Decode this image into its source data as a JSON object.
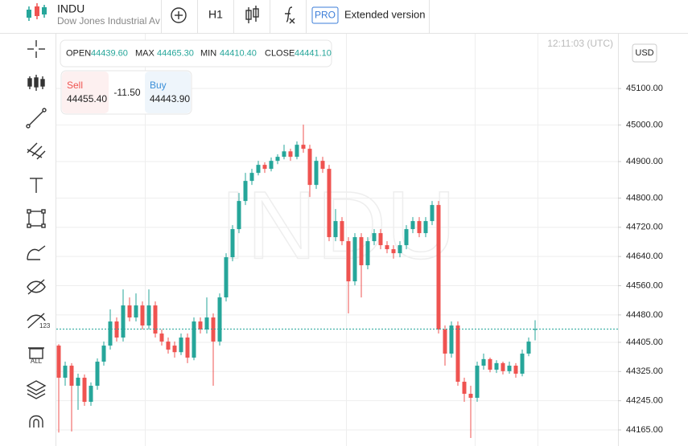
{
  "header": {
    "symbol": "INDU",
    "description": "Dow Jones Industrial Av",
    "timeframe": "H1",
    "pro": "PRO",
    "extended": "Extended version"
  },
  "toolbar": {
    "labels": [
      "123",
      "ALL"
    ]
  },
  "ohlc_panel": {
    "open_label": "OPEN",
    "open": "44439.60",
    "max_label": "MAX",
    "max": "44465.30",
    "min_label": "MIN",
    "min": "44410.40",
    "close_label": "CLOSE",
    "close": "44441.10"
  },
  "trade_panel": {
    "sell_label": "Sell",
    "sell": "44455.40",
    "spread": "-11.50",
    "buy_label": "Buy",
    "buy": "44443.90"
  },
  "clock": "12:11:03 (UTC)",
  "currency": "USD",
  "chart_data": {
    "type": "candlestick",
    "watermark": "INDU",
    "up_color": "#26a69a",
    "down_color": "#ef5350",
    "grid": true,
    "ylim": [
      44121,
      45250
    ],
    "yticks": [
      {
        "value": 45100,
        "label": "45100.00"
      },
      {
        "value": 45000,
        "label": "45000.00"
      },
      {
        "value": 44900,
        "label": "44900.00"
      },
      {
        "value": 44800,
        "label": "44800.00"
      },
      {
        "value": 44720,
        "label": "44720.00"
      },
      {
        "value": 44640,
        "label": "44640.00"
      },
      {
        "value": 44560,
        "label": "44560.00"
      },
      {
        "value": 44480,
        "label": "44480.00"
      },
      {
        "value": 44405,
        "label": "44405.00"
      },
      {
        "value": 44325,
        "label": "44325.00"
      },
      {
        "value": 44245,
        "label": "44245.00"
      },
      {
        "value": 44165,
        "label": "44165.00"
      }
    ],
    "open": [
      44396,
      44308,
      44341,
      44286,
      44308,
      44242,
      44286,
      44352,
      44396,
      44462,
      44418,
      44506,
      44473,
      44506,
      44451,
      44506,
      44429,
      44407,
      44396,
      44378,
      44418,
      44363,
      44462,
      44440,
      44473,
      44407,
      44528,
      44638,
      44715,
      44792,
      44847,
      44869,
      44891,
      44880,
      44902,
      44913,
      44928,
      44913,
      44946,
      44935,
      44836,
      44902,
      44880,
      44693,
      44737,
      44682,
      44572,
      44693,
      44616,
      44682,
      44704,
      44671,
      44660,
      44649,
      44671,
      44715,
      44737,
      44704,
      44737,
      44781,
      44440,
      44374,
      44451,
      44297,
      44264,
      44253,
      44341,
      44359,
      44330,
      44348,
      44326,
      44341,
      44319,
      44374,
      44439.6
    ],
    "high": [
      44400,
      44352,
      44348,
      44319,
      44317,
      44295,
      44361,
      44407,
      44495,
      44473,
      44550,
      44528,
      44539,
      44517,
      44550,
      44517,
      44440,
      44418,
      44407,
      44429,
      44429,
      44473,
      44473,
      44528,
      44484,
      44539,
      44649,
      44726,
      44814,
      44869,
      44880,
      44902,
      44898,
      44911,
      44920,
      44946,
      44935,
      44955,
      45001,
      44946,
      44913,
      44913,
      44891,
      44770,
      44748,
      44693,
      44704,
      44704,
      44693,
      44715,
      44715,
      44682,
      44671,
      44682,
      44726,
      44748,
      44748,
      44748,
      44792,
      44792,
      44451,
      44462,
      44462,
      44308,
      44286,
      44352,
      44374,
      44363,
      44356,
      44352,
      44352,
      44348,
      44385,
      44418,
      44465.3
    ],
    "low": [
      44158,
      44286,
      44161,
      44220,
      44231,
      44231,
      44275,
      44341,
      44385,
      44407,
      44407,
      44462,
      44462,
      44440,
      44440,
      44418,
      44396,
      44374,
      44363,
      44370,
      44348,
      44356,
      44429,
      44429,
      44286,
      44396,
      44517,
      44627,
      44704,
      44781,
      44836,
      44862,
      44869,
      44873,
      44893,
      44906,
      44902,
      44906,
      44924,
      44803,
      44825,
      44869,
      44682,
      44682,
      44671,
      44484,
      44561,
      44528,
      44605,
      44671,
      44660,
      44649,
      44634,
      44638,
      44660,
      44704,
      44693,
      44693,
      44726,
      44429,
      44341,
      44363,
      44286,
      44242,
      44143,
      44242,
      44330,
      44323,
      44321,
      44317,
      44319,
      44308,
      44312,
      44367,
      44410.4
    ],
    "close": [
      44308,
      44341,
      44286,
      44308,
      44242,
      44286,
      44352,
      44396,
      44462,
      44418,
      44506,
      44473,
      44506,
      44451,
      44506,
      44429,
      44407,
      44385,
      44378,
      44418,
      44363,
      44462,
      44440,
      44473,
      44407,
      44528,
      44638,
      44715,
      44792,
      44847,
      44869,
      44891,
      44880,
      44902,
      44913,
      44928,
      44913,
      44946,
      44935,
      44836,
      44902,
      44880,
      44693,
      44737,
      44682,
      44572,
      44693,
      44616,
      44682,
      44704,
      44671,
      44660,
      44649,
      44671,
      44715,
      44737,
      44704,
      44737,
      44781,
      44440,
      44374,
      44451,
      44297,
      44264,
      44253,
      44341,
      44359,
      44330,
      44348,
      44326,
      44341,
      44319,
      44374,
      44407,
      44441.1
    ]
  }
}
